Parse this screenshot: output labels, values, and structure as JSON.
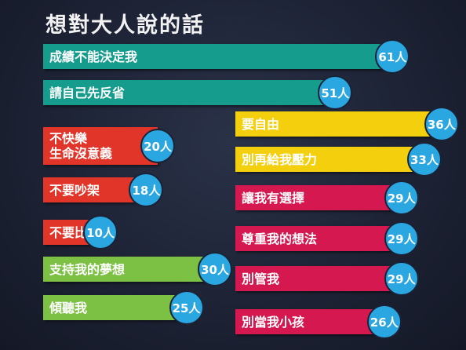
{
  "chart_data": {
    "type": "bar",
    "title": "想對大人說的話",
    "categories": [
      "成績不能決定我",
      "請自己先反省",
      "不快樂\n生命沒意義",
      "不要吵架",
      "不要比較",
      "支持我的夢想",
      "傾聽我",
      "要自由",
      "別再給我壓力",
      "讓我有選擇",
      "尊重我的想法",
      "別管我",
      "別當我小孩"
    ],
    "values": [
      61,
      51,
      20,
      18,
      10,
      30,
      25,
      36,
      33,
      29,
      29,
      29,
      26
    ],
    "value_labels": [
      "61人",
      "51人",
      "20人",
      "18人",
      "10人",
      "30人",
      "25人",
      "36人",
      "33人",
      "29人",
      "29人",
      "29人",
      "26人"
    ],
    "colors": [
      "#159c8c",
      "#159c8c",
      "#e2352a",
      "#e2352a",
      "#e2352a",
      "#7cc143",
      "#7cc143",
      "#f3cf0d",
      "#f3cf0d",
      "#d61850",
      "#d61850",
      "#d61850",
      "#d61850"
    ]
  }
}
